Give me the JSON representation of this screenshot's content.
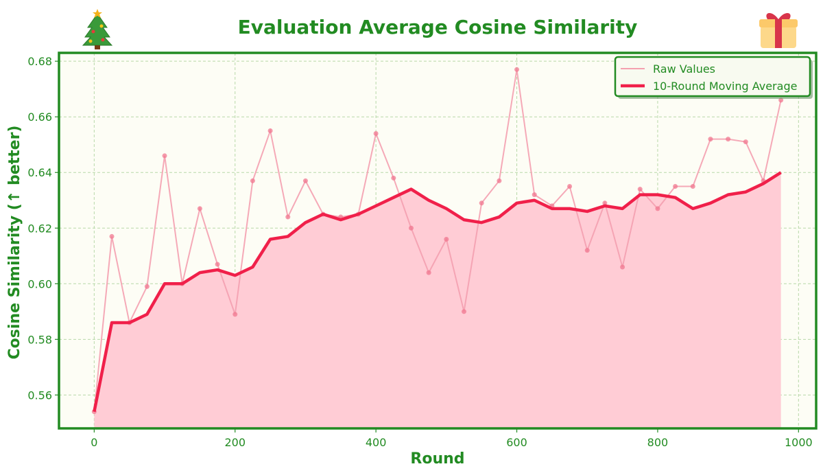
{
  "chart_data": {
    "type": "line",
    "title": "Evaluation Average Cosine Similarity",
    "xlabel": "Round",
    "ylabel": "Cosine Similarity (↑ better)",
    "xlim": [
      -50,
      1025
    ],
    "ylim": [
      0.548,
      0.683
    ],
    "xticks": [
      0,
      200,
      400,
      600,
      800,
      1000
    ],
    "yticks": [
      0.56,
      0.58,
      0.6,
      0.62,
      0.64,
      0.66,
      0.68
    ],
    "ytick_labels": [
      "0.56",
      "0.58",
      "0.60",
      "0.62",
      "0.64",
      "0.66",
      "0.68"
    ],
    "grid": true,
    "legend_position": "top-right",
    "x": [
      0,
      25,
      50,
      75,
      100,
      125,
      150,
      175,
      200,
      225,
      250,
      275,
      300,
      325,
      350,
      375,
      400,
      425,
      450,
      475,
      500,
      525,
      550,
      575,
      600,
      625,
      650,
      675,
      700,
      725,
      750,
      775,
      800,
      825,
      850,
      875,
      900,
      925,
      950,
      975
    ],
    "series": [
      {
        "name": "Raw Values",
        "color": "#f4a0b0",
        "values": [
          0.554,
          0.617,
          0.586,
          0.599,
          0.646,
          0.6,
          0.627,
          0.607,
          0.589,
          0.637,
          0.655,
          0.624,
          0.637,
          0.625,
          0.624,
          0.625,
          0.654,
          0.638,
          0.62,
          0.604,
          0.616,
          0.59,
          0.629,
          0.637,
          0.677,
          0.632,
          0.628,
          0.635,
          0.612,
          0.629,
          0.606,
          0.634,
          0.627,
          0.635,
          0.635,
          0.652,
          0.652,
          0.651,
          0.637,
          0.666
        ]
      },
      {
        "name": "10-Round Moving Average",
        "color": "#f0204a",
        "values": [
          0.554,
          0.586,
          0.586,
          0.589,
          0.6,
          0.6,
          0.604,
          0.605,
          0.603,
          0.606,
          0.616,
          0.617,
          0.622,
          0.625,
          0.623,
          0.625,
          0.628,
          0.631,
          0.634,
          0.63,
          0.627,
          0.623,
          0.622,
          0.624,
          0.629,
          0.63,
          0.627,
          0.627,
          0.626,
          0.628,
          0.627,
          0.632,
          0.632,
          0.631,
          0.627,
          0.629,
          0.632,
          0.633,
          0.636,
          0.64
        ]
      }
    ]
  },
  "colors": {
    "accent_green": "#228b22",
    "plot_background": "#fdfdf5",
    "fill": "#ffccd5"
  },
  "icons": {
    "left": "christmas-tree-icon",
    "right": "gift-icon"
  }
}
